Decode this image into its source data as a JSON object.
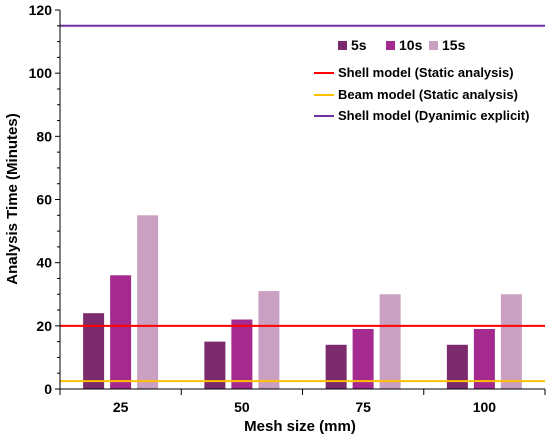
{
  "chart_data": {
    "type": "bar",
    "categories": [
      "25",
      "50",
      "75",
      "100"
    ],
    "series": [
      {
        "name": "5s",
        "color": "#7b2a6e",
        "values": [
          24,
          15,
          14,
          14
        ]
      },
      {
        "name": "10s",
        "color": "#a52a8f",
        "values": [
          36,
          22,
          19,
          19
        ]
      },
      {
        "name": "15s",
        "color": "#c9a0c2",
        "values": [
          55,
          31,
          30,
          30
        ]
      }
    ],
    "reference_lines": [
      {
        "name": "Shell model (Static analysis)",
        "color": "#ff0000",
        "value": 20
      },
      {
        "name": "Beam model (Static analysis)",
        "color": "#ffc000",
        "value": 2.5
      },
      {
        "name": "Shell model (Dyanimic explicit)",
        "color": "#7030a0",
        "value": 115
      }
    ],
    "xlabel": "Mesh size (mm)",
    "ylabel": "Analysis Time (Minutes)",
    "ylim": [
      0,
      120
    ],
    "yticks": [
      0,
      20,
      40,
      60,
      80,
      100,
      120
    ],
    "grid": false,
    "legend_position": "top-right"
  }
}
